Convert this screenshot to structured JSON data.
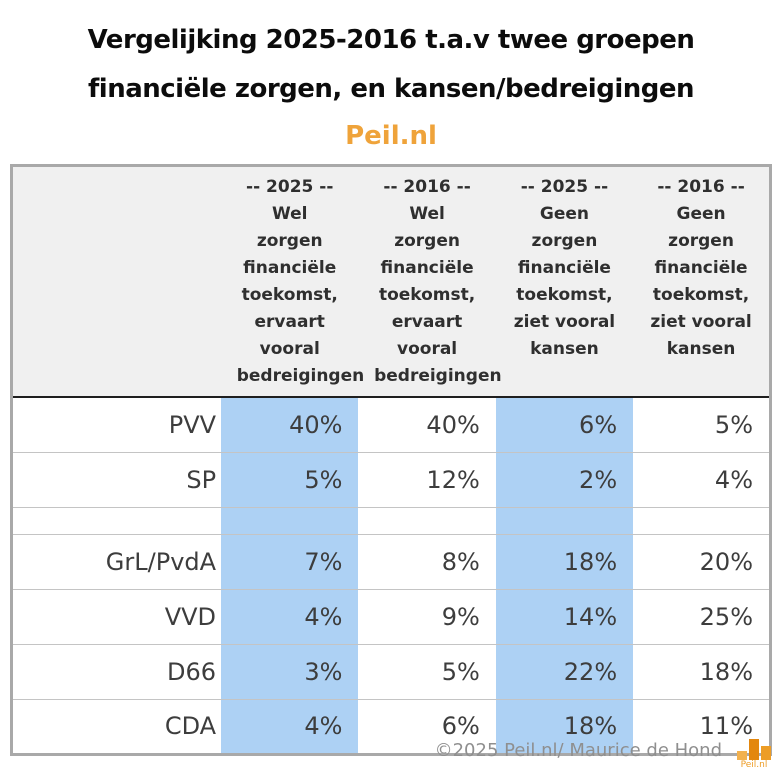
{
  "title": {
    "line1": "Vergelijking 2025-2016 t.a.v twee groepen",
    "line2": "financiële zorgen, en kansen/bedreigingen",
    "brand": "Peil.nl"
  },
  "table": {
    "columns": [
      {
        "year": "-- 2025 --",
        "label": "Wel zorgen financiële toekomst, ervaart vooral bedreigingen",
        "highlight": true
      },
      {
        "year": "-- 2016 --",
        "label": "Wel zorgen financiële toekomst, ervaart vooral bedreigingen",
        "highlight": false
      },
      {
        "year": "-- 2025 --",
        "label": "Geen zorgen financiële toekomst, ziet vooral kansen",
        "highlight": true
      },
      {
        "year": "-- 2016 --",
        "label": "Geen zorgen financiële toekomst, ziet vooral kansen",
        "highlight": false
      }
    ],
    "rows": [
      {
        "party": "PVV",
        "values": [
          "40%",
          "40%",
          "6%",
          "5%"
        ],
        "spacer": false
      },
      {
        "party": "SP",
        "values": [
          "5%",
          "12%",
          "2%",
          "4%"
        ],
        "spacer": false
      },
      {
        "party": "",
        "values": [
          "",
          "",
          "",
          ""
        ],
        "spacer": true
      },
      {
        "party": "GrL/PvdA",
        "values": [
          "7%",
          "8%",
          "18%",
          "20%"
        ],
        "spacer": false
      },
      {
        "party": "VVD",
        "values": [
          "4%",
          "9%",
          "14%",
          "25%"
        ],
        "spacer": false
      },
      {
        "party": "D66",
        "values": [
          "3%",
          "5%",
          "22%",
          "18%"
        ],
        "spacer": false
      },
      {
        "party": "CDA",
        "values": [
          "4%",
          "6%",
          "18%",
          "11%"
        ],
        "spacer": false
      }
    ]
  },
  "footer": {
    "credit": "©2025 Peil.nl/ Maurice de Hond",
    "logo_text": "Peil.nl"
  },
  "colors": {
    "accent_orange": "#efa33a",
    "highlight_blue": "#add1f4",
    "header_bg": "#f0f0f0",
    "logo_bar_light": "#f2b14e",
    "logo_bar_dark": "#e3870e",
    "logo_bar_mid": "#ed9d26"
  },
  "chart_data": {
    "type": "table",
    "title": "Vergelijking 2025-2016 t.a.v twee groepen financiële zorgen, en kansen/bedreigingen",
    "subtitle": "Peil.nl",
    "unit": "%",
    "categories": [
      "PVV",
      "SP",
      "GrL/PvdA",
      "VVD",
      "D66",
      "CDA"
    ],
    "series": [
      {
        "name": "-- 2025 -- Wel zorgen financiële toekomst, ervaart vooral bedreigingen",
        "values": [
          40,
          5,
          7,
          4,
          3,
          4
        ]
      },
      {
        "name": "-- 2016 -- Wel zorgen financiële toekomst, ervaart vooral bedreigingen",
        "values": [
          40,
          12,
          8,
          9,
          5,
          6
        ]
      },
      {
        "name": "-- 2025 -- Geen zorgen financiële toekomst, ziet vooral kansen",
        "values": [
          6,
          2,
          18,
          14,
          22,
          18
        ]
      },
      {
        "name": "-- 2016 -- Geen zorgen financiële toekomst, ziet vooral kansen",
        "values": [
          5,
          4,
          20,
          25,
          18,
          11
        ]
      }
    ],
    "layout_hints": {
      "highlighted_series_indexes": [
        0,
        2
      ],
      "group_break_after_row": "SP",
      "source": "©2025 Peil.nl/ Maurice de Hond"
    }
  }
}
